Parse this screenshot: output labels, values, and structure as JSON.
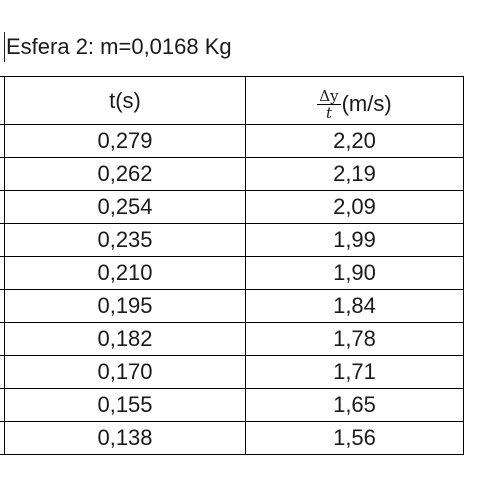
{
  "title": "Esfera 2: m=0,0168 Kg",
  "table": {
    "headers": {
      "t": "t(s)",
      "v_numerator": "Δy",
      "v_denominator": "t",
      "v_unit": "(m/s)"
    },
    "rows": [
      {
        "t": "0,279",
        "v": "2,20"
      },
      {
        "t": "0,262",
        "v": "2,19"
      },
      {
        "t": "0,254",
        "v": "2,09"
      },
      {
        "t": "0,235",
        "v": "1,99"
      },
      {
        "t": "0,210",
        "v": "1,90"
      },
      {
        "t": "0,195",
        "v": "1,84"
      },
      {
        "t": "0,182",
        "v": "1,78"
      },
      {
        "t": "0,170",
        "v": "1,71"
      },
      {
        "t": "0,155",
        "v": "1,65"
      },
      {
        "t": "0,138",
        "v": "1,56"
      }
    ]
  }
}
